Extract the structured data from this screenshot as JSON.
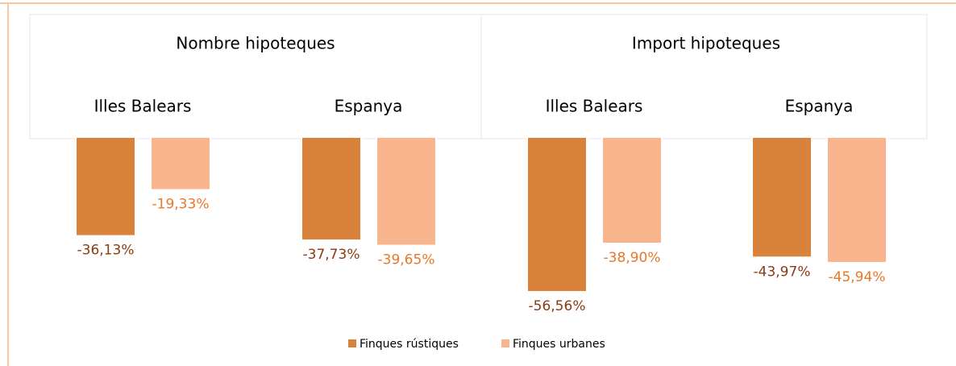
{
  "chart_data": {
    "type": "bar",
    "groups": [
      "Nombre hipoteques",
      "Import hipoteques"
    ],
    "categories": [
      "Illes Balears",
      "Espanya",
      "Illes Balears",
      "Espanya"
    ],
    "series": [
      {
        "name": "Finques rústiques",
        "color": "#d9823b",
        "label_color": "#8a3b12",
        "values": [
          -36.13,
          -37.73,
          -56.56,
          -43.97
        ],
        "value_labels": [
          "-36,13%",
          "-37,73%",
          "-56,56%",
          "-43,97%"
        ]
      },
      {
        "name": "Finques urbanes",
        "color": "#f8b48c",
        "label_color": "#e8772a",
        "values": [
          -19.33,
          -39.65,
          -38.9,
          -45.94
        ],
        "value_labels": [
          "-19,33%",
          "-39,65%",
          "-38,90%",
          "-45,94%"
        ]
      }
    ],
    "legend": "bottom"
  }
}
